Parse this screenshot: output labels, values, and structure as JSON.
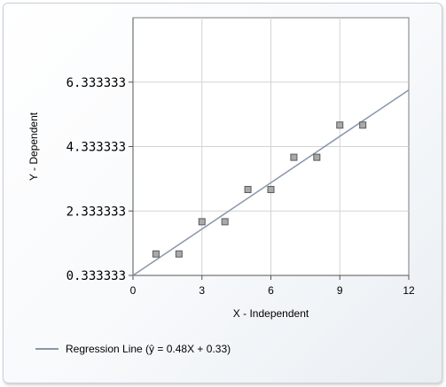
{
  "chart_data": {
    "type": "scatter",
    "title": "",
    "xlabel": "X - Independent",
    "ylabel": "Y - Dependent",
    "xlim": [
      0,
      12
    ],
    "ylim": [
      0.333333,
      8.333333
    ],
    "x_ticks": [
      0,
      3,
      6,
      9,
      12
    ],
    "x_tick_labels": [
      "0",
      "3",
      "6",
      "9",
      "12"
    ],
    "y_ticks": [
      0.333333,
      2.333333,
      4.333333,
      6.333333
    ],
    "y_tick_labels": [
      "0.333333",
      "2.333333",
      "4.333333",
      "6.333333"
    ],
    "grid": true,
    "series": [
      {
        "type": "scatter",
        "x": [
          1,
          2,
          3,
          4,
          5,
          6,
          7,
          8,
          9,
          10
        ],
        "y": [
          1.0,
          1.0,
          2.0,
          2.0,
          3.0,
          3.0,
          4.0,
          4.0,
          5.0,
          5.0
        ],
        "color": "#9a9a9a"
      },
      {
        "type": "line",
        "name": "Regression Line (ŷ = 0.48X + 0.33)",
        "slope": 0.48,
        "intercept": 0.33,
        "color": "#8a96a8"
      }
    ],
    "legend": "bottom-left"
  }
}
